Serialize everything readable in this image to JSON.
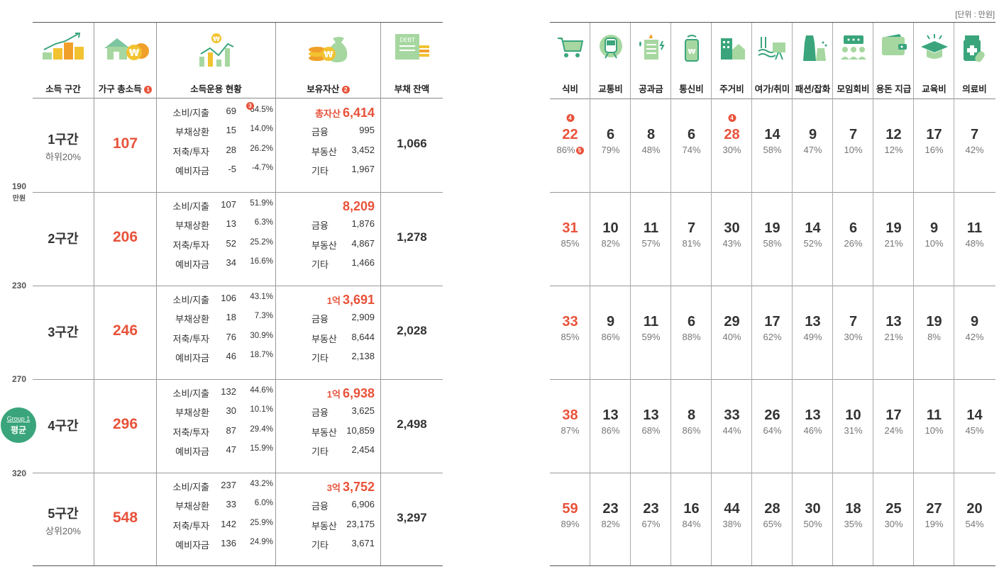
{
  "unit_note": "[단위 : 만원]",
  "left_headers": {
    "tier": "소득 구간",
    "income": "가구 총소득",
    "income_badge": "1",
    "usage": "소득운용 현황",
    "asset": "보유자산",
    "asset_badge": "2",
    "debt": "부채 잔액"
  },
  "usage_badge": "3",
  "axis": {
    "labels": [
      "190",
      "230",
      "270",
      "320"
    ],
    "unit": "만원"
  },
  "group_badge": {
    "line1": "Group 1",
    "line2": "평균"
  },
  "usage_labels": [
    "소비/지출",
    "부채상환",
    "저축/투자",
    "예비자금"
  ],
  "asset_labels": [
    "금융",
    "부동산",
    "기타"
  ],
  "total_asset_label": "총자산",
  "tiers": [
    {
      "name": "1구간",
      "sub": "하위20%",
      "income": "107",
      "usage": [
        [
          "69",
          "64.5%"
        ],
        [
          "15",
          "14.0%"
        ],
        [
          "28",
          "26.2%"
        ],
        [
          "-5",
          "-4.7%"
        ]
      ],
      "asset_prefix": "총자산",
      "asset_total": "6,414",
      "assets": [
        "995",
        "3,452",
        "1,967"
      ],
      "debt": "1,066"
    },
    {
      "name": "2구간",
      "sub": "",
      "income": "206",
      "usage": [
        [
          "107",
          "51.9%"
        ],
        [
          "13",
          "6.3%"
        ],
        [
          "52",
          "25.2%"
        ],
        [
          "34",
          "16.6%"
        ]
      ],
      "asset_prefix": "",
      "asset_total": "8,209",
      "assets": [
        "1,876",
        "4,867",
        "1,466"
      ],
      "debt": "1,278"
    },
    {
      "name": "3구간",
      "sub": "",
      "income": "246",
      "usage": [
        [
          "106",
          "43.1%"
        ],
        [
          "18",
          "7.3%"
        ],
        [
          "76",
          "30.9%"
        ],
        [
          "46",
          "18.7%"
        ]
      ],
      "asset_prefix": "1억",
      "asset_total": "3,691",
      "assets": [
        "2,909",
        "8,644",
        "2,138"
      ],
      "debt": "2,028"
    },
    {
      "name": "4구간",
      "sub": "",
      "income": "296",
      "usage": [
        [
          "132",
          "44.6%"
        ],
        [
          "30",
          "10.1%"
        ],
        [
          "87",
          "29.4%"
        ],
        [
          "47",
          "15.9%"
        ]
      ],
      "asset_prefix": "1억",
      "asset_total": "6,938",
      "assets": [
        "3,625",
        "10,859",
        "2,454"
      ],
      "debt": "2,498"
    },
    {
      "name": "5구간",
      "sub": "상위20%",
      "income": "548",
      "usage": [
        [
          "237",
          "43.2%"
        ],
        [
          "33",
          "6.0%"
        ],
        [
          "142",
          "25.9%"
        ],
        [
          "136",
          "24.9%"
        ]
      ],
      "asset_prefix": "3억",
      "asset_total": "3,752",
      "assets": [
        "6,906",
        "23,175",
        "3,671"
      ],
      "debt": "3,297"
    }
  ],
  "expense_categories": [
    "식비",
    "교통비",
    "공과금",
    "통신비",
    "주거비",
    "여가/취미",
    "패션/잡화",
    "모임회비",
    "용돈 지급",
    "교육비",
    "의료비"
  ],
  "expense_icons": [
    "cart-icon",
    "train-icon",
    "utility-bill-icon",
    "phone-icon",
    "house-icon",
    "leisure-icon",
    "fashion-icon",
    "meeting-icon",
    "wallet-icon",
    "graduation-cap-icon",
    "medicine-icon"
  ],
  "expense_rows": [
    {
      "values": [
        "22",
        "6",
        "8",
        "6",
        "28",
        "14",
        "9",
        "7",
        "12",
        "17",
        "7"
      ],
      "pcts": [
        "86%",
        "79%",
        "48%",
        "74%",
        "30%",
        "58%",
        "47%",
        "10%",
        "12%",
        "16%",
        "42%"
      ]
    },
    {
      "values": [
        "31",
        "10",
        "11",
        "7",
        "30",
        "19",
        "14",
        "6",
        "19",
        "9",
        "11"
      ],
      "pcts": [
        "85%",
        "82%",
        "57%",
        "81%",
        "43%",
        "58%",
        "52%",
        "26%",
        "21%",
        "10%",
        "48%"
      ]
    },
    {
      "values": [
        "33",
        "9",
        "11",
        "6",
        "29",
        "17",
        "13",
        "7",
        "13",
        "19",
        "9"
      ],
      "pcts": [
        "85%",
        "86%",
        "59%",
        "88%",
        "40%",
        "62%",
        "49%",
        "30%",
        "21%",
        "8%",
        "42%"
      ]
    },
    {
      "values": [
        "38",
        "13",
        "13",
        "8",
        "33",
        "26",
        "13",
        "10",
        "17",
        "11",
        "14"
      ],
      "pcts": [
        "87%",
        "86%",
        "68%",
        "86%",
        "44%",
        "64%",
        "46%",
        "31%",
        "24%",
        "10%",
        "45%"
      ]
    },
    {
      "values": [
        "59",
        "23",
        "23",
        "16",
        "44",
        "28",
        "30",
        "18",
        "25",
        "27",
        "20"
      ],
      "pcts": [
        "89%",
        "82%",
        "67%",
        "84%",
        "38%",
        "65%",
        "50%",
        "35%",
        "30%",
        "19%",
        "54%"
      ]
    }
  ],
  "expense_badges": {
    "food_top": "4",
    "food_pct": "5",
    "housing_top": "4"
  },
  "colors": {
    "accent_red": "#e8523a",
    "accent_green": "#3aa57c",
    "text": "#333333"
  }
}
